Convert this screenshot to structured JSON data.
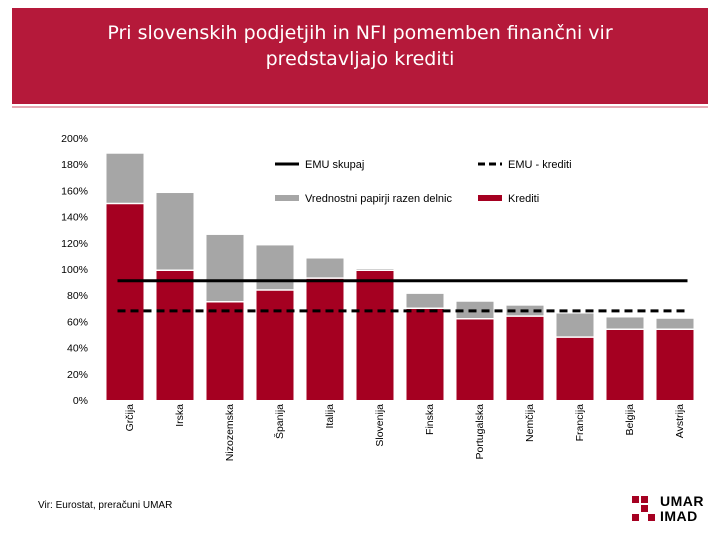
{
  "header": {
    "title_line1": "Pri slovenskih podjetjih in NFI pomemben finančni vir",
    "title_line2": "predstavljajo krediti"
  },
  "footer": {
    "source": "Vir: Eurostat, preračuni UMAR"
  },
  "logo": {
    "line1": "UMAR",
    "line2": "IMAD"
  },
  "colors": {
    "title_band": "#b5193a",
    "credits": "#a50021",
    "securities": "#a6a6a6",
    "line": "#000000"
  },
  "chart_data": {
    "type": "bar",
    "stacked": true,
    "categories": [
      "Grčija",
      "Irska",
      "Nizozemska",
      "Španija",
      "Italija",
      "Slovenija",
      "Finska",
      "Portugalska",
      "Nemčija",
      "Francija",
      "Belgija",
      "Avstrija"
    ],
    "series": [
      {
        "name": "Krediti",
        "values": [
          150,
          99,
          75,
          84,
          93,
          99,
          70,
          62,
          64,
          48,
          54,
          54
        ]
      },
      {
        "name": "Vrednostni papirji razen delnic",
        "values": [
          38,
          59,
          51,
          34,
          15,
          1,
          11,
          13,
          8,
          18,
          9,
          8
        ]
      }
    ],
    "reference_lines": [
      {
        "name": "EMU skupaj",
        "value": 91,
        "style": "solid"
      },
      {
        "name": "EMU - krediti",
        "value": 68,
        "style": "dashed"
      }
    ],
    "y_ticks": [
      0,
      20,
      40,
      60,
      80,
      100,
      120,
      140,
      160,
      180,
      200
    ],
    "y_tick_labels": [
      "0%",
      "20%",
      "40%",
      "60%",
      "80%",
      "100%",
      "120%",
      "140%",
      "160%",
      "180%",
      "200%"
    ],
    "ylim": [
      0,
      200
    ],
    "legend": [
      {
        "label": "EMU skupaj",
        "kind": "solid-line"
      },
      {
        "label": "EMU - krediti",
        "kind": "dashed-line"
      },
      {
        "label": "Vrednostni papirji razen delnic",
        "kind": "gray-bar"
      },
      {
        "label": "Krediti",
        "kind": "red-bar"
      }
    ],
    "legend_position": "top-right"
  }
}
